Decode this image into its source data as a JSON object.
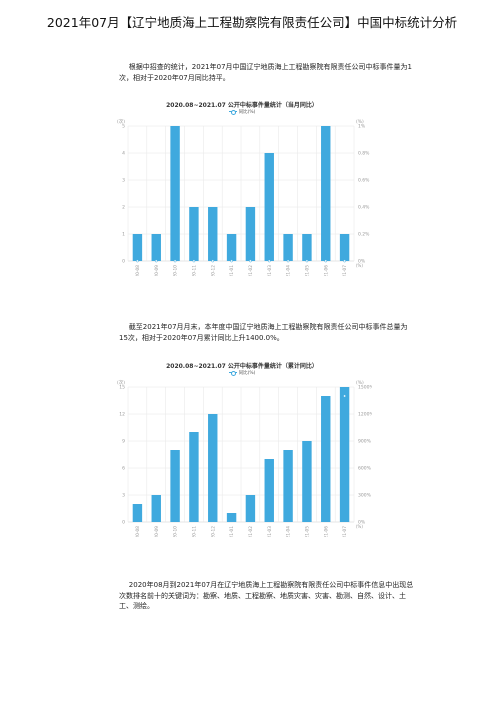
{
  "page": {
    "title": "2021年07月【辽宁地质海上工程勘察院有限责任公司】中国中标统计分析",
    "para1": "根据中招查的统计，2021年07月中国辽宁地质海上工程勘察院有限责任公司中标事件量为1次，相对于2020年07月同比持平。",
    "para2": "截至2021年07月月末，本年度中国辽宁地质海上工程勘察院有限责任公司中标事件总量为15次，相对于2020年07月累计同比上升1400.0%。",
    "para3": "2020年08月到2021年07月在辽宁地质海上工程勘察院有限责任公司中标事件信息中出现总次数排名前十的关键词为：勘察、地质、工程勘察、地质灾害、灾害、勘测、自然、设计、土工、测绘。"
  },
  "colors": {
    "bar": "#3fa9de",
    "grid": "#e6e6e6",
    "axis": "#cccccc",
    "label": "#999999"
  },
  "chart_data": [
    {
      "type": "bar",
      "title": "2020.08~2021.07 公开中标事件量统计（当月同比）",
      "legend": "同比(%)",
      "left_unit": "(次)",
      "right_unit": "(%)",
      "right_axis_label": "(%)",
      "categories": [
        "2020-08",
        "2020-09",
        "2020-10",
        "2020-11",
        "2020-12",
        "2021-01",
        "2021-02",
        "2021-03",
        "2021-04",
        "2021-05",
        "2021-06",
        "2021-07"
      ],
      "values": [
        1,
        1,
        5,
        2,
        2,
        1,
        2,
        4,
        1,
        1,
        5,
        1
      ],
      "ylim": [
        0,
        5
      ],
      "y_ticks": [
        "0",
        "1",
        "2",
        "3",
        "4",
        "5"
      ],
      "right_ticks": [
        "0%",
        "0.2%",
        "0.4%",
        "0.6%",
        "0.8%",
        "1%"
      ],
      "line_values": [
        0,
        0,
        0,
        0,
        0,
        0,
        0,
        0,
        0,
        0,
        0,
        0
      ]
    },
    {
      "type": "bar",
      "title": "2020.08~2021.07 公开中标事件量统计（累计同比）",
      "legend": "同比(%)",
      "left_unit": "(次)",
      "right_unit": "(%)",
      "right_axis_label": "(%)",
      "categories": [
        "2020-08",
        "2020-09",
        "2020-10",
        "2020-11",
        "2020-12",
        "2021-01",
        "2021-02",
        "2021-03",
        "2021-04",
        "2021-05",
        "2021-06",
        "2021-07"
      ],
      "values": [
        2,
        3,
        8,
        10,
        12,
        1,
        3,
        7,
        8,
        9,
        14,
        15
      ],
      "ylim": [
        0,
        15
      ],
      "y_ticks": [
        "0",
        "3",
        "6",
        "9",
        "12",
        "15"
      ],
      "right_ticks": [
        "0%",
        "300%",
        "600%",
        "900%",
        "1200%",
        "1500%"
      ],
      "line_values": [
        null,
        null,
        null,
        null,
        null,
        null,
        null,
        null,
        null,
        null,
        null,
        1400
      ]
    }
  ]
}
